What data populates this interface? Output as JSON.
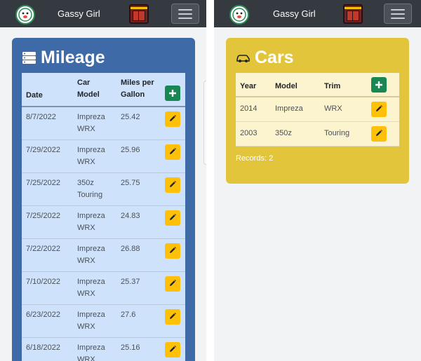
{
  "left": {
    "navbar": {
      "brand": "Gassy Girl"
    },
    "card": {
      "title": "Mileage",
      "headers": {
        "date": "Date",
        "car_model": "Car Model",
        "mpg": "Miles per Gallon"
      },
      "rows": [
        {
          "date": "8/7/2022",
          "model": "Impreza",
          "trim": "WRX",
          "mpg": "25.42"
        },
        {
          "date": "7/29/2022",
          "model": "Impreza",
          "trim": "WRX",
          "mpg": "25.96"
        },
        {
          "date": "7/25/2022",
          "model": "350z",
          "trim": "Touring",
          "mpg": "25.75"
        },
        {
          "date": "7/25/2022",
          "model": "Impreza",
          "trim": "WRX",
          "mpg": "24.83"
        },
        {
          "date": "7/22/2022",
          "model": "Impreza",
          "trim": "WRX",
          "mpg": "26.88"
        },
        {
          "date": "7/10/2022",
          "model": "Impreza",
          "trim": "WRX",
          "mpg": "25.37"
        },
        {
          "date": "6/23/2022",
          "model": "Impreza",
          "trim": "WRX",
          "mpg": "27.6"
        },
        {
          "date": "6/18/2022",
          "model": "Impreza",
          "trim": "WRX",
          "mpg": "25.16"
        }
      ]
    }
  },
  "right": {
    "navbar": {
      "brand": "Gassy Girl"
    },
    "card": {
      "title": "Cars",
      "headers": {
        "year": "Year",
        "model": "Model",
        "trim": "Trim"
      },
      "rows": [
        {
          "year": "2014",
          "model": "Impreza",
          "trim": "WRX"
        },
        {
          "year": "2003",
          "model": "350z",
          "trim": "Touring"
        }
      ],
      "records": "Records: 2"
    }
  },
  "colors": {
    "navbar": "#343a40",
    "mileage_card": "#3e6aa8",
    "cars_card": "#e2c53b",
    "add_button": "#198754",
    "edit_button": "#ffc107"
  },
  "icons": {
    "brand": "ghost-face-icon",
    "fuel": "gas-pump-icon",
    "menu": "hamburger-icon",
    "mileage": "database-icon",
    "cars": "car-icon",
    "add": "plus-icon",
    "edit": "pencil-icon"
  }
}
